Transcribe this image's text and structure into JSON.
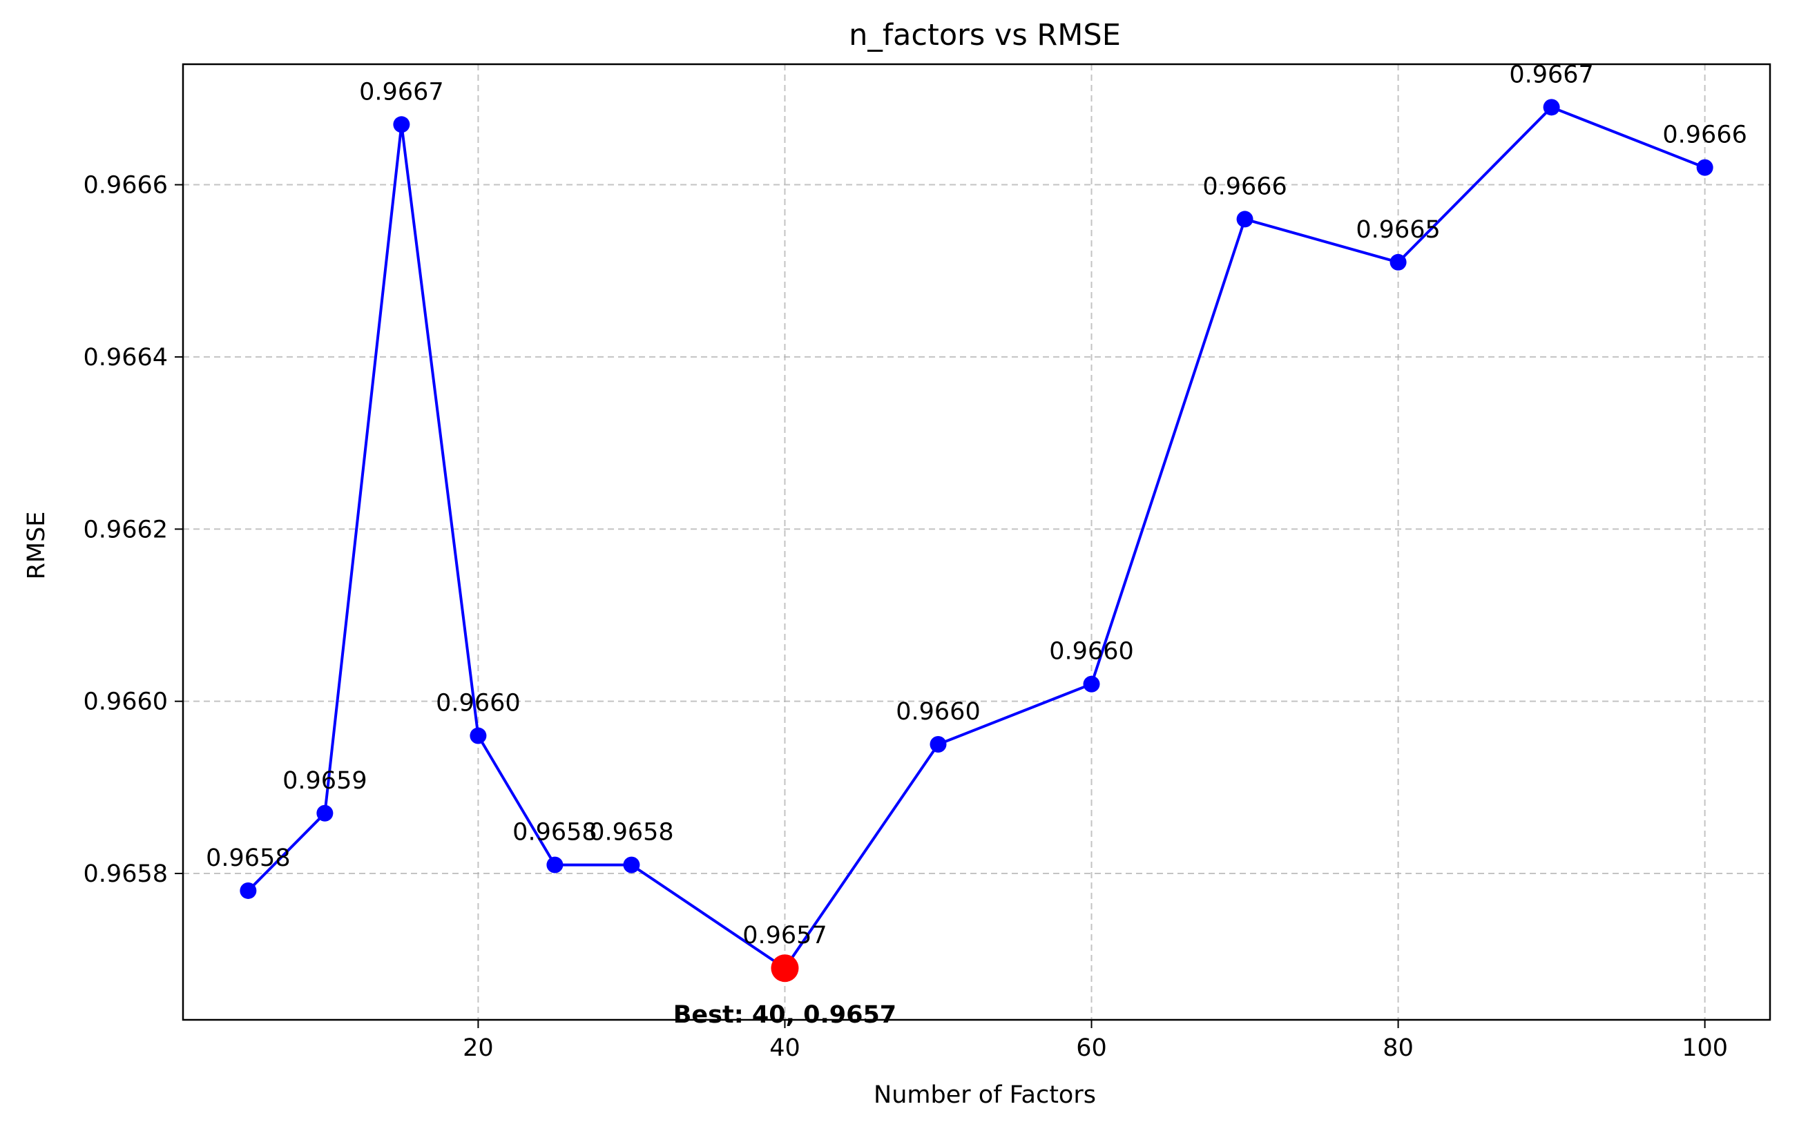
{
  "chart_data": {
    "type": "line",
    "title": "n_factors vs RMSE",
    "xlabel": "Number of Factors",
    "ylabel": "RMSE",
    "xlim": [
      0.75,
      104.25
    ],
    "ylim": [
      0.96563,
      0.96674
    ],
    "grid": true,
    "x_ticks": [
      20,
      40,
      60,
      80,
      100
    ],
    "x_tick_labels": [
      "20",
      "40",
      "60",
      "80",
      "100"
    ],
    "y_ticks": [
      0.9658,
      0.966,
      0.9662,
      0.9664,
      0.9666
    ],
    "y_tick_labels": [
      "0.9658",
      "0.9660",
      "0.9662",
      "0.9664",
      "0.9666"
    ],
    "series": [
      {
        "color": "#0000ff",
        "marker": "circle",
        "x": [
          5,
          10,
          15,
          20,
          25,
          30,
          40,
          50,
          60,
          70,
          80,
          90,
          100
        ],
        "y": [
          0.96578,
          0.96587,
          0.96667,
          0.96596,
          0.96581,
          0.96581,
          0.96569,
          0.96595,
          0.96602,
          0.96656,
          0.96651,
          0.96669,
          0.96662
        ],
        "labels": [
          "0.9658",
          "0.9659",
          "0.9667",
          "0.9660",
          "0.9658",
          "0.9658",
          "0.9657",
          "0.9660",
          "0.9660",
          "0.9666",
          "0.9665",
          "0.9667",
          "0.9666"
        ]
      }
    ],
    "best_point": {
      "x": 40,
      "y": 0.96569,
      "color": "#ff0000",
      "label": "Best: 40, 0.9657"
    }
  }
}
